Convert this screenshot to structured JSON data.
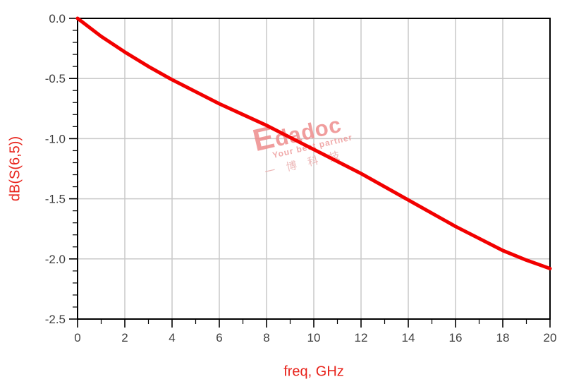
{
  "colors": {
    "curve": "#f20000",
    "axis_title": "#e8231b",
    "tick_label": "#3f3f3f",
    "grid": "#c9c9c9",
    "frame": "#000000",
    "watermark_primary": "#ee8c8c",
    "watermark_secondary": "#e9abab"
  },
  "chart_data": {
    "type": "line",
    "title": "",
    "xlabel": "freq, GHz",
    "ylabel": "dB(S(6,5))",
    "xlim": [
      0,
      20
    ],
    "ylim": [
      -2.5,
      0
    ],
    "grid": true,
    "legend": "none",
    "x_ticks": {
      "values": [
        0,
        2,
        4,
        6,
        8,
        10,
        12,
        14,
        16,
        18,
        20
      ],
      "labels": [
        "0",
        "2",
        "4",
        "6",
        "8",
        "10",
        "12",
        "14",
        "16",
        "18",
        "20"
      ],
      "minor_step": 1
    },
    "y_ticks": {
      "values": [
        0,
        -0.5,
        -1,
        -1.5,
        -2,
        -2.5
      ],
      "labels": [
        "0.0",
        "-0.5",
        "-1.0",
        "-1.5",
        "-2.0",
        "-2.5"
      ],
      "minor_step": 0.1
    },
    "series": [
      {
        "name": "dB(S(6,5))",
        "color": "#f20000",
        "line_width": 5,
        "x": [
          0,
          1,
          2,
          3,
          4,
          5,
          6,
          7,
          8,
          9,
          10,
          11,
          12,
          13,
          14,
          15,
          16,
          17,
          18,
          19,
          20
        ],
        "y": [
          0.0,
          -0.15,
          -0.28,
          -0.4,
          -0.51,
          -0.61,
          -0.71,
          -0.8,
          -0.89,
          -0.99,
          -1.09,
          -1.19,
          -1.29,
          -1.4,
          -1.51,
          -1.62,
          -1.73,
          -1.83,
          -1.93,
          -2.01,
          -2.08
        ]
      }
    ]
  },
  "watermark": {
    "brand": "Edadoc",
    "tagline": "Your best partner",
    "chinese": "一 博 科 技"
  }
}
